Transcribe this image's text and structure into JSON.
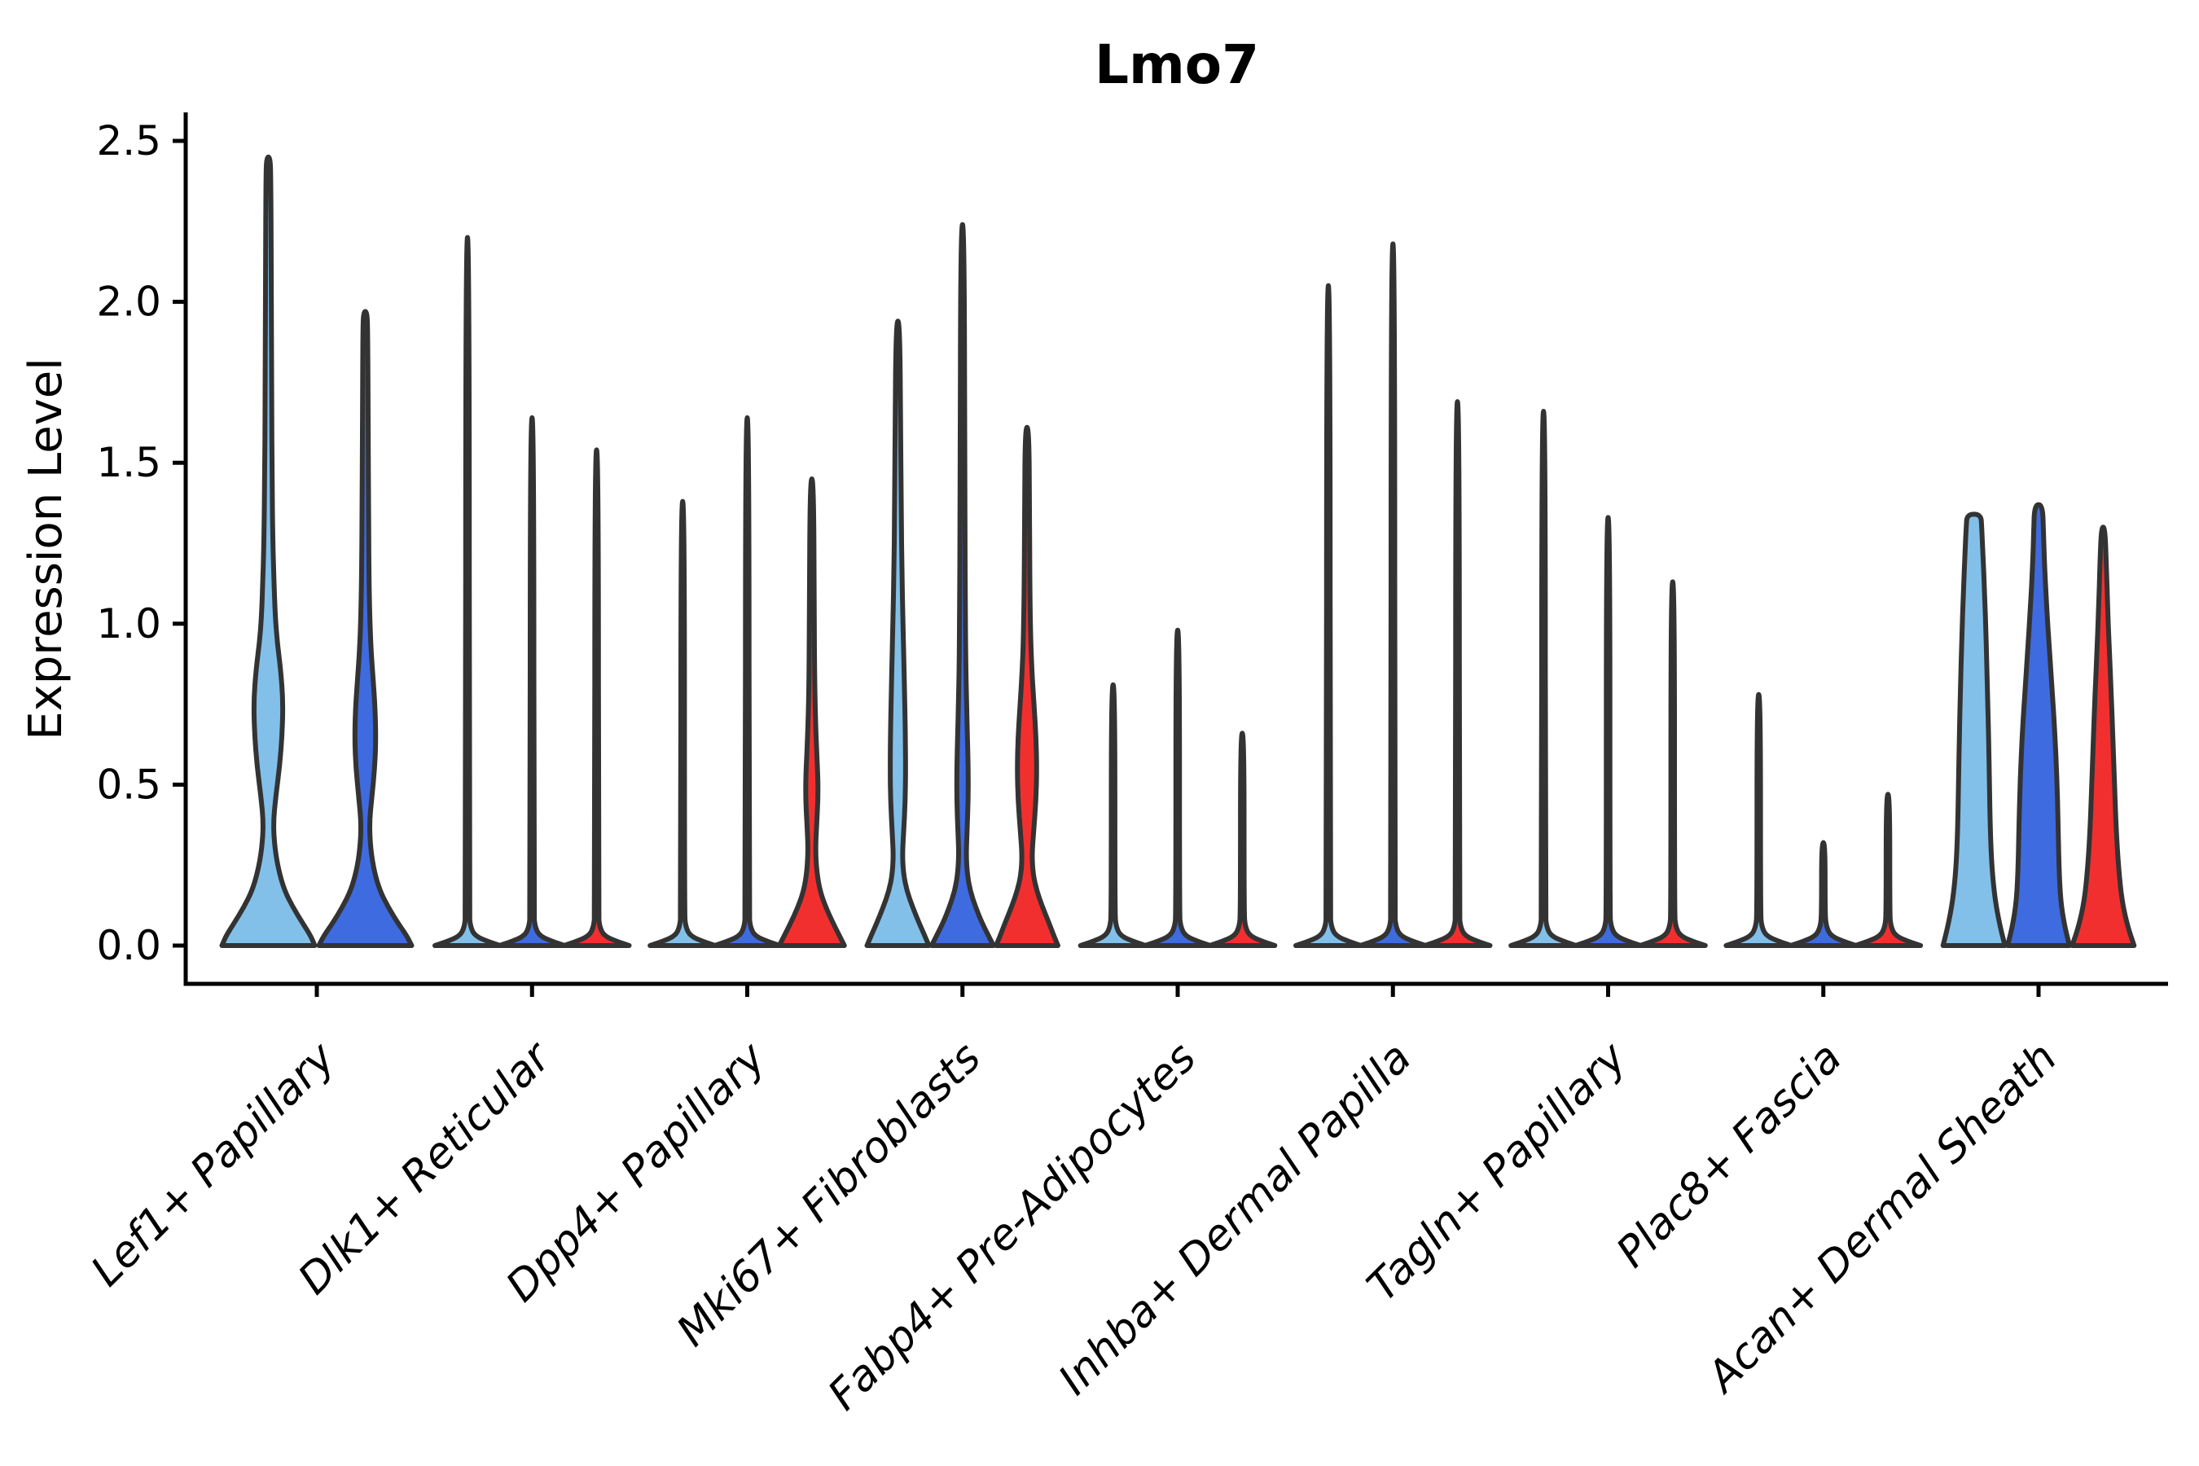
{
  "figure": {
    "title": "Lmo7",
    "y_axis_label": "Expression Level",
    "background_color": "#ffffff"
  },
  "chart_data": {
    "type": "violin",
    "title": "Lmo7",
    "xlabel": "",
    "ylabel": "Expression Level",
    "ylim": [
      -0.12,
      2.58
    ],
    "yticks": [
      0.0,
      0.5,
      1.0,
      1.5,
      2.0,
      2.5
    ],
    "ytick_labels": [
      "0.0",
      "0.5",
      "1.0",
      "1.5",
      "2.0",
      "2.5"
    ],
    "grid": false,
    "legend_position": "none",
    "edge_color": "#333333",
    "palette": {
      "split_1": "#82C0E9",
      "split_2": "#3F6BE0",
      "split_3": "#F22F2F"
    },
    "categories": [
      "Lef1+ Papillary",
      "Dlk1+ Reticular",
      "Dpp4+ Papillary",
      "Mki67+ Fibroblasts",
      "Fabp4+ Pre-Adipocytes",
      "Inhba+ Dermal Papilla",
      "Tagln+ Papillary",
      "Plac8+ Fascia",
      "Acan+ Dermal Sheath"
    ],
    "groups": [
      {
        "label": "Lef1+ Papillary",
        "violins": [
          {
            "split": "split_1",
            "max": 2.45,
            "shape": "kde",
            "profile": [
              [
                0,
                57
              ],
              [
                0.03,
                52
              ],
              [
                0.07,
                42
              ],
              [
                0.12,
                30
              ],
              [
                0.17,
                20
              ],
              [
                0.23,
                13
              ],
              [
                0.3,
                8
              ],
              [
                0.38,
                6
              ],
              [
                0.46,
                9
              ],
              [
                0.56,
                14
              ],
              [
                0.66,
                17
              ],
              [
                0.76,
                18
              ],
              [
                0.86,
                15
              ],
              [
                0.94,
                11
              ],
              [
                1.02,
                8.5
              ],
              [
                1.12,
                7
              ],
              [
                1.25,
                5.5
              ],
              [
                1.45,
                4.5
              ],
              [
                1.7,
                4
              ],
              [
                2.1,
                3.5
              ],
              [
                2.38,
                3
              ],
              [
                2.45,
                2.2
              ]
            ]
          },
          {
            "split": "split_2",
            "max": 1.97,
            "shape": "kde",
            "profile": [
              [
                0,
                57
              ],
              [
                0.03,
                51
              ],
              [
                0.07,
                40
              ],
              [
                0.12,
                28
              ],
              [
                0.17,
                18
              ],
              [
                0.23,
                11
              ],
              [
                0.3,
                6.5
              ],
              [
                0.38,
                5
              ],
              [
                0.46,
                8
              ],
              [
                0.55,
                11.5
              ],
              [
                0.64,
                13
              ],
              [
                0.74,
                12
              ],
              [
                0.83,
                9.5
              ],
              [
                0.92,
                7
              ],
              [
                1.02,
                5.5
              ],
              [
                1.15,
                4.5
              ],
              [
                1.35,
                4
              ],
              [
                1.6,
                3.5
              ],
              [
                1.9,
                3
              ],
              [
                1.97,
                2.2
              ]
            ]
          }
        ]
      },
      {
        "label": "Dlk1+ Reticular",
        "violins": [
          {
            "split": "split_1",
            "max": 2.2,
            "shape": "spike"
          },
          {
            "split": "split_2",
            "max": 1.64,
            "shape": "spike"
          },
          {
            "split": "split_3",
            "max": 1.54,
            "shape": "spike"
          }
        ]
      },
      {
        "label": "Dpp4+ Papillary",
        "violins": [
          {
            "split": "split_1",
            "max": 1.38,
            "shape": "spike"
          },
          {
            "split": "split_2",
            "max": 1.64,
            "shape": "spike"
          },
          {
            "split": "split_3",
            "max": 1.45,
            "shape": "kde",
            "profile": [
              [
                0,
                40
              ],
              [
                0.03,
                34
              ],
              [
                0.07,
                26
              ],
              [
                0.12,
                17
              ],
              [
                0.17,
                10
              ],
              [
                0.23,
                6
              ],
              [
                0.3,
                4.5
              ],
              [
                0.38,
                6
              ],
              [
                0.45,
                7.5
              ],
              [
                0.52,
                7.5
              ],
              [
                0.6,
                6
              ],
              [
                0.7,
                4.5
              ],
              [
                0.82,
                3.5
              ],
              [
                1.0,
                3
              ],
              [
                1.45,
                2.2
              ]
            ]
          }
        ]
      },
      {
        "label": "Mki67+ Fibroblasts",
        "violins": [
          {
            "split": "split_1",
            "max": 1.94,
            "shape": "kde",
            "profile": [
              [
                0,
                38
              ],
              [
                0.03,
                33
              ],
              [
                0.07,
                26
              ],
              [
                0.12,
                18
              ],
              [
                0.17,
                11
              ],
              [
                0.22,
                7
              ],
              [
                0.28,
                5.5
              ],
              [
                0.35,
                7
              ],
              [
                0.45,
                9
              ],
              [
                0.55,
                9.5
              ],
              [
                0.68,
                9
              ],
              [
                0.8,
                8
              ],
              [
                0.92,
                7
              ],
              [
                1.02,
                6
              ],
              [
                1.15,
                5
              ],
              [
                1.35,
                4
              ],
              [
                1.6,
                3.5
              ],
              [
                1.94,
                2.2
              ]
            ]
          },
          {
            "split": "split_2",
            "max": 2.24,
            "shape": "kde",
            "profile": [
              [
                0,
                38
              ],
              [
                0.03,
                32
              ],
              [
                0.07,
                24
              ],
              [
                0.12,
                16
              ],
              [
                0.17,
                9.5
              ],
              [
                0.22,
                6
              ],
              [
                0.28,
                4.5
              ],
              [
                0.35,
                5.5
              ],
              [
                0.45,
                7
              ],
              [
                0.55,
                7
              ],
              [
                0.65,
                6
              ],
              [
                0.75,
                5
              ],
              [
                0.88,
                4
              ],
              [
                1.05,
                3.5
              ],
              [
                1.3,
                3
              ],
              [
                2.24,
                2.2
              ]
            ]
          },
          {
            "split": "split_3",
            "max": 1.61,
            "shape": "kde",
            "profile": [
              [
                0,
                38
              ],
              [
                0.03,
                33
              ],
              [
                0.07,
                27
              ],
              [
                0.12,
                19
              ],
              [
                0.17,
                12
              ],
              [
                0.22,
                7.5
              ],
              [
                0.28,
                6
              ],
              [
                0.35,
                8
              ],
              [
                0.45,
                11
              ],
              [
                0.55,
                12
              ],
              [
                0.65,
                11
              ],
              [
                0.75,
                8.5
              ],
              [
                0.85,
                6
              ],
              [
                0.95,
                4.5
              ],
              [
                1.1,
                3.5
              ],
              [
                1.35,
                3
              ],
              [
                1.61,
                2.2
              ]
            ]
          }
        ]
      },
      {
        "label": "Fabp4+ Pre-Adipocytes",
        "violins": [
          {
            "split": "split_1",
            "max": 0.81,
            "shape": "spike"
          },
          {
            "split": "split_2",
            "max": 0.98,
            "shape": "spike"
          },
          {
            "split": "split_3",
            "max": 0.66,
            "shape": "spike"
          }
        ]
      },
      {
        "label": "Inhba+ Dermal Papilla",
        "violins": [
          {
            "split": "split_1",
            "max": 2.05,
            "shape": "spike"
          },
          {
            "split": "split_2",
            "max": 2.18,
            "shape": "spike"
          },
          {
            "split": "split_3",
            "max": 1.69,
            "shape": "spike"
          }
        ]
      },
      {
        "label": "Tagln+ Papillary",
        "violins": [
          {
            "split": "split_1",
            "max": 1.66,
            "shape": "spike"
          },
          {
            "split": "split_2",
            "max": 1.33,
            "shape": "spike"
          },
          {
            "split": "split_3",
            "max": 1.13,
            "shape": "spike"
          }
        ]
      },
      {
        "label": "Plac8+ Fascia",
        "violins": [
          {
            "split": "split_1",
            "max": 0.78,
            "shape": "spike"
          },
          {
            "split": "split_2",
            "max": 0.32,
            "shape": "spike"
          },
          {
            "split": "split_3",
            "max": 0.47,
            "shape": "spike"
          }
        ]
      },
      {
        "label": "Acan+ Dermal Sheath",
        "violins": [
          {
            "split": "split_1",
            "max": 1.34,
            "shape": "kde",
            "flat_top": true,
            "profile": [
              [
                0,
                38
              ],
              [
                0.06,
                32
              ],
              [
                0.14,
                26
              ],
              [
                0.24,
                22
              ],
              [
                0.36,
                20
              ],
              [
                0.5,
                19
              ],
              [
                0.65,
                18
              ],
              [
                0.8,
                16.5
              ],
              [
                0.95,
                15
              ],
              [
                1.1,
                13
              ],
              [
                1.22,
                11
              ],
              [
                1.3,
                9.5
              ],
              [
                1.34,
                8.5
              ]
            ]
          },
          {
            "split": "split_2",
            "max": 1.37,
            "shape": "kde",
            "flat_top": true,
            "profile": [
              [
                0,
                38
              ],
              [
                0.06,
                32
              ],
              [
                0.14,
                27
              ],
              [
                0.25,
                25
              ],
              [
                0.38,
                24
              ],
              [
                0.52,
                22.5
              ],
              [
                0.66,
                20
              ],
              [
                0.8,
                16.5
              ],
              [
                0.93,
                13
              ],
              [
                1.05,
                10
              ],
              [
                1.17,
                7.5
              ],
              [
                1.28,
                6
              ],
              [
                1.37,
                5
              ]
            ]
          },
          {
            "split": "split_3",
            "max": 1.3,
            "shape": "kde",
            "profile": [
              [
                0,
                38
              ],
              [
                0.06,
                30
              ],
              [
                0.14,
                23
              ],
              [
                0.24,
                19
              ],
              [
                0.36,
                16
              ],
              [
                0.5,
                14
              ],
              [
                0.64,
                12
              ],
              [
                0.78,
                10
              ],
              [
                0.92,
                7.5
              ],
              [
                1.05,
                5.5
              ],
              [
                1.18,
                4
              ],
              [
                1.3,
                2.2
              ]
            ]
          }
        ]
      }
    ]
  }
}
